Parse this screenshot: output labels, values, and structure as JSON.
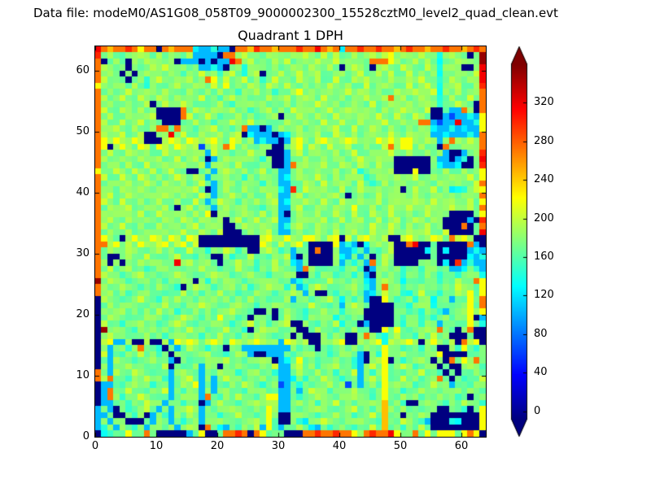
{
  "header": {
    "data_file_label": "Data file: modeM0/AS1G08_058T09_9000002300_15528cztM0_level2_quad_clean.evt"
  },
  "chart_data": {
    "type": "heatmap",
    "title": "Quadrant 1 DPH",
    "xlabel": "",
    "ylabel": "",
    "grid_size": 64,
    "xlim": [
      0,
      64
    ],
    "ylim": [
      0,
      64
    ],
    "x_ticks": [
      0,
      10,
      20,
      30,
      40,
      50,
      60
    ],
    "y_ticks": [
      0,
      10,
      20,
      30,
      40,
      50,
      60
    ],
    "colormap": "jet",
    "vmin": -8,
    "vmax": 360,
    "colorbar_ticks": [
      0,
      40,
      80,
      120,
      160,
      200,
      240,
      280,
      320
    ],
    "colorbar_extend": "both",
    "background_color": "#ffffff",
    "value_palette": {
      "K": -8,
      "B": 65,
      "b": 105,
      "c": 135,
      "t": 155,
      "g": 175,
      "G": 195,
      "y": 220,
      "Y": 245,
      "o": 272,
      "O": 300,
      "r": 318,
      "R": 352
    },
    "rows_top_to_bottom": [
      "roYooOoyooKoYooocbbcbbKooYOooYoooOooroYocooOooOooYoOooYooOooYoOo",
      "OgGgtggGggGggggGbbbbKoogGgggGgggGgGggGgGggGggGgGygGggGggcgGggKgR",
      "oKgGgKggGgggGKbbbKbKbbrogGgggGgGggGgGggGgGgggoooyGggGgGgcggGgggR",
      "oGgggKgggGgGgggggbbcbKggcGgggGggGggGggGgKgGggKgGggGgggGgcgGgKKgr",
      "ogGgKgKgGgggGgtggGggtgGgcgGKggGggGggGgggGggGggGgGggGgggGcggGggGr",
      "oGgggKgGcgGggggGggoygGggGggtgGgggGggGggGggGgGgggGggGgGggcgGggGgr",
      "yggGggGgcGgggGggGggGgygggGggGggGggGgggGggGggGggGgggGggGgcggGggGO",
      "ogGggGggGggGgggGgtggGggtggGggtggGygGggGggGgGggGggGggGggGcggGgggo",
      "oGggGggGggGggGgggGggtgGggtggGggGggGggGggGgggGggGogGggGggcgGggGgo",
      "ogGggGggGKgGggGggtggGgtggGggtggGgGggGggGggGggGggGggGggGgcggGggKo",
      "oGggGggGggKKKKogGggGggGggtggGgggGggGggGggGggGggGggGgggGKKgbbogKo",
      "ogGggGgggGKKKKoGggGgtggGggtggGKggGggGggGgggGggGggGggGggKKbBbbcby",
      "oGggGggGgggKKKggGggtggGggGggtggGggGggGggGggGgggGggGggoobBbbrbbcy",
      "oggGggGggGoogoggtggGggtgobbKbgGggGggGggGggGggGggGggGgggcbbcbcbby",
      "oGggGggGKKggrgGggGggGggGKcbbbKbcgGggGggGggGggGggGggGggGbbcbbbcbo",
      "oyGyGgyGKKKGyGgyGgGyGgyGgGbcbbKbGyGgGyGgGyGgGgyGyGyyGgGgbgoGgGgo",
      "oyKGyGgyGgyGgyGgGBgGgoygGggGgKKgGygGggGggGggGggGogyygGggKoggGggo",
      "ogGggGggGggGggGgggbGggtggGggKKKbgGggGggGggGggGggGggGggGggbKKbgGO",
      "oGggGggGggGggGggGgKbgGggGggtgKKbggGggGggGggGggGggKKKKKKgbbKbcKgr",
      "ogGggGggGggGggGggGbgGggGggtggKKbogGggGggGggGggGggKKKKKKgcbbcKKgO",
      "yggGggGggGggGggKKggbgGggGggGggbbgGggGggGggGcgGggGKKKyKKggGggGggy",
      "oGggGggGggGggGggGgbggGggtggGggbcgGggGggGggGgcgGggGggGggGggGggGgy",
      "ogGggGggGggGggGggGgbgGggGggtggbbggGggGggGggGgcgGggGggGggGggGggGo",
      "oGggGggGggGggGggGgKbgGggGggGggcbOgGggGggGggGggGggGKgGggGggcccgGy",
      "ogGggGggGggGggGggGgbggGggGggGgbbgGggGggGgKgGggGggGggGggGggGggGgo",
      "oGggGggGggGggGggGgbgGggtggGggGbcggGggGggGggGggGggGggGggGggGggGgy",
      "ogGggGggGggGgKgGgggbgGggGggtggbbgGggGggGggyggGggGggGggGgggGggGgo",
      "oGggGggGggGggGggGgyKgGggGggGggbKgGggGggGggGggGggGggGggGgggKKKKgy",
      "ogGggGggGggGggGggGggGKgGggGggGbbggGggGggGggGggGggGggGggGgKKKKbKO",
      "oGggGggGggGggGggGggGgKKgGggGggbcgGggGggGggGggGggGggGggGggKKKoKgo",
      "ogGggGggGggGggGggGggGKKKgGggGgbbgGggGggGggGggGggGggGggGggGKKKKgr",
      "oyGgKGyGgyGgyGgyGKKKKKKKKKKGyGgyGgyyGgGyKGgGyGgGKKGyGgGyGgoGyGKK",
      "ooGygGgyGgGygGygGKKKKKKKKKKyGgGgGygKKKKybcbKcgGgGKKorKKgKKKKKobK",
      "ogGggGggtgGggtgGggtggGgtgKKgGgtgbggKoKKgbbcgbgtgGKKKKKcgKcKKKbcb",
      "ogKKgGggGgtggGggtggKKgtggGggtggGbKgKKKKGcbgbgKgGgKKKKKKgKKKKKcbc",
      "oGKgKggGggGggrgGggGgKggGggtggGggcbgKKKKgbgcgbogGgKKKKgggKcKObcbb",
      "ogGggGggtggGggtggGggtggGggtggGggtboggtggtggtKbgGggtggtggtgbbcgcb",
      "oGggtggGggtggGggtggGggtggGggtggGgKKgtggtggtgbKgtggtggtggtggtgggc",
      "RgGggtggGggtggGgKgtggGggtggGggtgbcgtggGggtggcbgGggcggtggtggGggoy",
      "oGggGggtggGggtKgGggtggGggtggGggtgbcgGggtggGgcbgoggtggGggtggGggty",
      "ogGggtggGggtggGggtggGggtggGggtggGgbgKKgtggGgbcgGggtcgGggtggGgygy",
      "KGggtggGggtggGggtggGggtggGggtggGbggtggGgcgtgbKKygtggcggcggbggygo",
      "KgGggGggtggGggtggGggtggGggtggGggtggGggtgbgGggKKKKgtcgGgcggtggygo",
      "KGggGggtggGggtggGggtggGggtKKgKgGggtggGggtggGKKKKKggtgcggtbggGygy",
      "KgGggtggGggtggGggtggyggtgKggtKgGggtggGgcgtggKKKKKgtggtgcggtggyKb",
      "KGggtggGggtggGggtggGggtggGggtggGKKggtggGcgtKbKKKKgcggtggbggtgygc",
      "KRgGggtggGggtggGggtggGggtKgGggtggKKgGggtggGggKKygygtggGgogtKgoKK",
      "KgGggtggGggtggGggtggGggtggGggtggKgKKKgtggKKgogtcgGggtggGggKKKgKK",
      "KGybbGKKGKKGbyGyGgGyGgyGgGyGgGbyGgGKKGgGyKKGgGycGgGyGKGyGgGKoGyK",
      "KgbggtgoggtKgbgGggtggKggbbbbbbbbgtggKgtggtggggtyggtggtggKKgtygtg",
      "KGbgtggGggtgKggtggGggtgGgbKKbbbgtggGggtggGgbKgtyggGggtggyKKKKgtg",
      "KgbGggtggGggbKgtggGggGggtggGgKbcgyggtggGggtbKgGyKgtggGgKgKogygog",
      "KGbggGggtggGKgtggbggKggGggtggGbbgGggtggGggtbgGgyggGgtggGKgKKgGgt",
      "ogbGggGggtggbgGggbggGggtggGggtbbgGggGggtggGbgtgyggtggGggtKgKgtgg",
      "oGoggtggGggtbggGgbgbgGggtggGggbbcgtggGggtggbgGgyggGggtggogKgtggG",
      "KbbgtgGggtggbgGgybgbgtggGggtggBbgcgtggGggBgbggtygGggtggGggbggtgg",
      "KboggGggtggGbgtggbgbgGggtggGggbbgbgGggtgggGggtgyggtggGggtggGgggt",
      "KbogtggGggtgbggGgbogtggGggtgyybbgtggGggtggGggtgyggGggtggGggtgKgg",
      "KbbggtggGggbggtggKbgGggtggGgGGbbgGggtggGggtggGgYggtKKgGggtggGggt",
      "bgbKgtggGgbgbggGgbgtggGggtggyGbbgtggGggtggGggtgYggGggtggKKggtKgy",
      "bbgKKgtgKbgtbggGgbggtggGggtgygKKgGggtggGggtggGgYggKggGgKKKKKKKKy",
      "bgbggKKKgbggbgtggbggGggtggGgytKKgtcggGggtggGggtYggGggtbKKKccKKKy",
      "bcgbggtgbggtgbgGgKogcbgtggGbytbggGgcbgtgggtggGgYggtggGgKKKKKKKKy",
      "KctggyggogKKKKKbgyKKgooOoKoygggKKKooOooOooygoOooryggogygyyygyoyKy"
    ]
  }
}
